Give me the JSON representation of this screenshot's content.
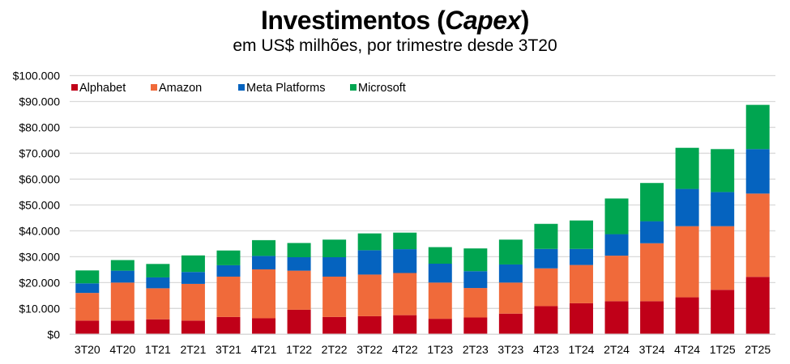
{
  "chart_data": {
    "type": "bar",
    "stacked": true,
    "title": "Investimentos (Capex)",
    "title_main": "Investimentos (",
    "title_italic": "Capex",
    "title_end": ")",
    "subtitle": "em US$ milhões, por trimestre desde 3T20",
    "xlabel": "",
    "ylabel": "",
    "ylim": [
      0,
      100000
    ],
    "yticks": [
      0,
      10000,
      20000,
      30000,
      40000,
      50000,
      60000,
      70000,
      80000,
      90000,
      100000
    ],
    "ytick_labels": [
      "$0",
      "$10.000",
      "$20.000",
      "$30.000",
      "$40.000",
      "$50.000",
      "$60.000",
      "$70.000",
      "$80.000",
      "$90.000",
      "$100.000"
    ],
    "grid": true,
    "legend_position": "top-left",
    "categories": [
      "3T20",
      "4T20",
      "1T21",
      "2T21",
      "3T21",
      "4T21",
      "1T22",
      "2T22",
      "3T22",
      "4T22",
      "1T23",
      "2T23",
      "3T23",
      "4T23",
      "1T24",
      "2T24",
      "3T24",
      "4T24",
      "1T25",
      "2T25"
    ],
    "series": [
      {
        "name": "Alphabet",
        "color": "#C00018",
        "values": [
          5300,
          5300,
          5800,
          5300,
          6700,
          6200,
          9500,
          6700,
          7000,
          7400,
          6000,
          6500,
          8000,
          10900,
          12000,
          12800,
          12800,
          14300,
          17200,
          22200
        ]
      },
      {
        "name": "Amazon",
        "color": "#F06A3A",
        "values": [
          10700,
          14700,
          12000,
          14200,
          15600,
          18900,
          15100,
          15600,
          16100,
          16300,
          14000,
          11400,
          12000,
          14600,
          14800,
          17600,
          22400,
          27500,
          24600,
          32200
        ]
      },
      {
        "name": "Meta Platforms",
        "color": "#0563BF",
        "values": [
          3700,
          4600,
          4200,
          4600,
          4400,
          5200,
          5200,
          7500,
          9400,
          9200,
          7300,
          6500,
          7000,
          7500,
          6200,
          8300,
          8500,
          14400,
          13200,
          17200
        ]
      },
      {
        "name": "Microsoft",
        "color": "#00A550",
        "values": [
          5000,
          4100,
          5200,
          6400,
          5700,
          6100,
          5500,
          6800,
          6500,
          6400,
          6400,
          8800,
          9600,
          9700,
          11000,
          13800,
          14800,
          15900,
          16600,
          17100
        ]
      }
    ]
  }
}
